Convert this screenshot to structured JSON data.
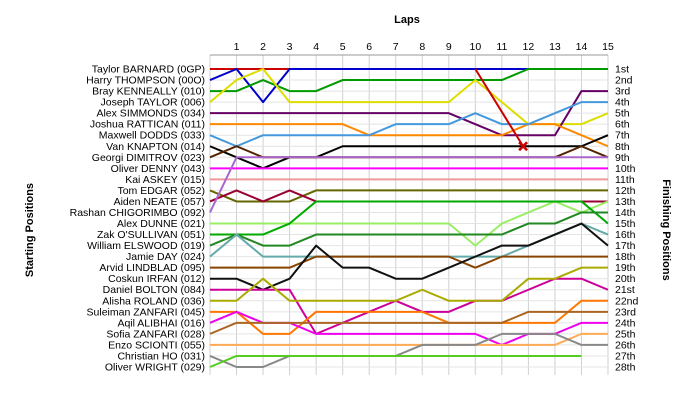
{
  "chart_data": {
    "type": "line",
    "title": "",
    "xlabel": "Laps",
    "ylabel_left": "Starting Positions",
    "ylabel_right": "Finishing Positions",
    "x": [
      0,
      1,
      2,
      3,
      4,
      5,
      6,
      7,
      8,
      9,
      10,
      11,
      12,
      13,
      14,
      15
    ],
    "x_tick_labels": [
      "1",
      "2",
      "3",
      "4",
      "5",
      "6",
      "7",
      "8",
      "9",
      "10",
      "11",
      "12",
      "13",
      "14",
      "15"
    ],
    "y_positions": 28,
    "y_reversed": true,
    "grid": true,
    "starting_labels": [
      "Taylor BARNARD (0GP)",
      "Harry THOMPSON (00O)",
      "Bray KENNEALLY (010)",
      "Joseph TAYLOR (006)",
      "Alex SIMMONDS (034)",
      "Joshua RATTICAN (011)",
      "Maxwell DODDS (033)",
      "Van KNAPTON (014)",
      "Georgi DIMITROV (023)",
      "Oliver DENNY (043)",
      "Kai ASKEY (015)",
      "Tom EDGAR (052)",
      "Aiden NEATE (057)",
      "Rashan CHIGORIMBO (092)",
      "Alex DUNNE (021)",
      "Zak O'SULLIVAN (051)",
      "William ELSWOOD (019)",
      "Jamie DAY (024)",
      "Arvid LINDBLAD (095)",
      "Coskun IRFAN (012)",
      "Daniel BOLTON (084)",
      "Alisha ROLAND (036)",
      "Suleiman ZANFARI (045)",
      "Aqil ALIBHAI (016)",
      "Sofia ZANFARI (028)",
      "Enzo SCIONTI (055)",
      "Christian HO (031)",
      "Oliver WRIGHT (029)"
    ],
    "finishing_labels": [
      "1st",
      "2nd",
      "3rd",
      "4th",
      "5th",
      "6th",
      "7th",
      "8th",
      "9th",
      "10th",
      "11th",
      "12th",
      "13th",
      "14th",
      "15th",
      "16th",
      "17th",
      "18th",
      "19th",
      "20th",
      "21st",
      "22nd",
      "23rd",
      "24th",
      "25th",
      "26th",
      "27th",
      "28th"
    ],
    "series": [
      {
        "color": "#cc0000",
        "values": [
          1,
          1,
          1,
          1,
          1,
          1,
          1,
          1,
          1,
          1,
          1,
          1,
          1,
          1,
          1,
          1
        ]
      },
      {
        "color": "#0000cc",
        "values": [
          2,
          1,
          4,
          1,
          1,
          1,
          1,
          1,
          1,
          1,
          1,
          1,
          1,
          1,
          1,
          1
        ]
      },
      {
        "color": "#009900",
        "values": [
          3,
          3,
          2,
          3,
          3,
          2,
          2,
          2,
          2,
          2,
          2,
          2,
          1,
          1,
          1,
          1
        ]
      },
      {
        "color": "#dddd00",
        "values": [
          4,
          2,
          1,
          4,
          4,
          4,
          4,
          4,
          4,
          4,
          2,
          4,
          6,
          6,
          6,
          5
        ]
      },
      {
        "color": "#660066",
        "values": [
          5,
          5,
          5,
          5,
          5,
          5,
          5,
          5,
          5,
          5,
          6,
          7,
          7,
          7,
          3,
          3
        ]
      },
      {
        "color": "#ff8800",
        "values": [
          6,
          6,
          6,
          6,
          6,
          6,
          7,
          7,
          7,
          7,
          7,
          7,
          6,
          6,
          7,
          8
        ]
      },
      {
        "color": "#4499dd",
        "values": [
          7,
          8,
          7,
          7,
          7,
          7,
          7,
          6,
          6,
          6,
          5,
          6,
          6,
          5,
          4,
          4
        ]
      },
      {
        "color": "#000000",
        "values": [
          8,
          9,
          10,
          9,
          9,
          8,
          8,
          8,
          8,
          8,
          8,
          8,
          8,
          8,
          8,
          7
        ]
      },
      {
        "color": "#552200",
        "values": [
          9,
          8,
          9,
          9,
          9,
          9,
          9,
          9,
          9,
          9,
          9,
          9,
          9,
          9,
          8,
          9
        ]
      },
      {
        "color": "#ff00ff",
        "values": [
          10,
          10,
          10,
          10,
          10,
          10,
          10,
          10,
          10,
          10,
          10,
          10,
          10,
          10,
          10,
          10
        ]
      },
      {
        "color": "#ee9999",
        "values": [
          11,
          11,
          11,
          11,
          11,
          11,
          11,
          11,
          11,
          11,
          11,
          11,
          11,
          11,
          11,
          11
        ]
      },
      {
        "color": "#666600",
        "values": [
          12,
          13,
          13,
          13,
          12,
          12,
          12,
          12,
          12,
          12,
          12,
          12,
          12,
          12,
          12,
          12
        ]
      },
      {
        "color": "#990033",
        "values": [
          13,
          12,
          13,
          12,
          13,
          13,
          13,
          13,
          13,
          13,
          13,
          13,
          13,
          13,
          13,
          13
        ]
      },
      {
        "color": "#aa66cc",
        "values": [
          14,
          9,
          9,
          9,
          9,
          9,
          9,
          9,
          9,
          9,
          9,
          9,
          9,
          9,
          9,
          9
        ]
      },
      {
        "color": "#99ee66",
        "values": [
          15,
          15,
          15,
          15,
          15,
          15,
          15,
          15,
          15,
          15,
          17,
          15,
          14,
          13,
          14,
          13
        ]
      },
      {
        "color": "#00aa00",
        "values": [
          16,
          16,
          16,
          15,
          13,
          13,
          13,
          13,
          13,
          13,
          13,
          13,
          13,
          13,
          13,
          15
        ]
      },
      {
        "color": "#228822",
        "values": [
          17,
          16,
          17,
          17,
          16,
          16,
          16,
          16,
          16,
          16,
          16,
          16,
          15,
          15,
          14,
          14
        ]
      },
      {
        "color": "#66aaaa",
        "values": [
          18,
          16,
          18,
          18,
          18,
          18,
          18,
          18,
          18,
          18,
          18,
          18,
          17,
          16,
          15,
          16
        ]
      },
      {
        "color": "#884400",
        "values": [
          19,
          19,
          19,
          19,
          18,
          18,
          18,
          18,
          18,
          18,
          19,
          18,
          18,
          18,
          18,
          18
        ]
      },
      {
        "color": "#111111",
        "values": [
          20,
          20,
          21,
          20,
          17,
          19,
          19,
          20,
          20,
          19,
          18,
          17,
          17,
          16,
          15,
          17
        ]
      },
      {
        "color": "#cc0099",
        "values": [
          21,
          21,
          21,
          21,
          25,
          24,
          23,
          22,
          23,
          23,
          22,
          22,
          21,
          20,
          20,
          21
        ]
      },
      {
        "color": "#aaaa00",
        "values": [
          22,
          22,
          20,
          22,
          22,
          22,
          22,
          22,
          21,
          22,
          22,
          22,
          20,
          20,
          19,
          19
        ]
      },
      {
        "color": "#ff7700",
        "values": [
          23,
          23,
          25,
          25,
          23,
          23,
          23,
          23,
          23,
          24,
          24,
          24,
          24,
          24,
          22,
          22
        ]
      },
      {
        "color": "#ee00ee",
        "values": [
          24,
          23,
          24,
          24,
          25,
          25,
          25,
          25,
          25,
          25,
          25,
          26,
          25,
          25,
          24,
          24
        ]
      },
      {
        "color": "#aa6622",
        "values": [
          25,
          24,
          24,
          24,
          24,
          24,
          24,
          24,
          24,
          24,
          24,
          24,
          23,
          23,
          23,
          23
        ]
      },
      {
        "color": "#ffaa55",
        "values": [
          26,
          26,
          26,
          26,
          26,
          26,
          26,
          26,
          26,
          26,
          26,
          26,
          26,
          26,
          25,
          25
        ]
      },
      {
        "color": "#888888",
        "values": [
          27,
          28,
          28,
          27,
          27,
          27,
          27,
          27,
          26,
          26,
          26,
          25,
          25,
          25,
          26,
          26
        ]
      },
      {
        "color": "#55cc22",
        "values": [
          28,
          27,
          27,
          27,
          27,
          27,
          27,
          27,
          27,
          27,
          27,
          27,
          27,
          27,
          27,
          null
        ]
      }
    ],
    "annotations": [
      {
        "type": "line",
        "color": "#cc0000",
        "x": [
          10,
          11.8
        ],
        "y": [
          1,
          8
        ]
      },
      {
        "type": "marker",
        "symbol": "x",
        "color": "#cc0000",
        "x": 11.8,
        "y": 8
      }
    ]
  }
}
